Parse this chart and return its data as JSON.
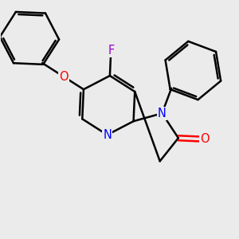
{
  "bg_color": "#ebebeb",
  "bond_color": "#000000",
  "bond_width": 1.8,
  "N_color": "#0000ff",
  "O_color": "#ff0000",
  "F_color": "#9900cc",
  "label_fontsize": 10.5,
  "fig_width": 3.0,
  "fig_height": 3.0,
  "dpi": 100,
  "xlim": [
    0,
    10
  ],
  "ylim": [
    0,
    10
  ]
}
